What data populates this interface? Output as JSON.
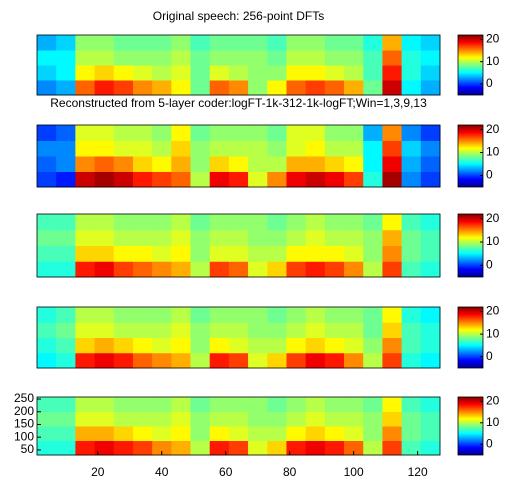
{
  "chart_data": [
    {
      "type": "heatmap",
      "title": "Original speech: 256-point DFTs",
      "colormap": "jet",
      "zlim": [
        -5,
        22
      ],
      "cticks": [
        0,
        10,
        20
      ],
      "xlim": [
        1,
        127
      ],
      "ylim": [
        30,
        258
      ],
      "x": [
        4,
        10,
        16,
        22,
        28,
        34,
        40,
        46,
        52,
        58,
        64,
        70,
        76,
        82,
        88,
        94,
        100,
        106,
        112,
        118,
        124
      ],
      "y": [
        58.5,
        115.5,
        172.5,
        229.5
      ],
      "z": [
        [
          2,
          3,
          16,
          18,
          17,
          15,
          14,
          12,
          8,
          16,
          15,
          9,
          12,
          16,
          17,
          16,
          14,
          8,
          20,
          5,
          3
        ],
        [
          4,
          5,
          12,
          13,
          12,
          11,
          10,
          11,
          8,
          11,
          10,
          9,
          9,
          12,
          12,
          11,
          10,
          7,
          18,
          6,
          4
        ],
        [
          5,
          5,
          10,
          10,
          9,
          9,
          9,
          10,
          8,
          9,
          9,
          9,
          8,
          10,
          10,
          9,
          9,
          7,
          16,
          6,
          5
        ],
        [
          3,
          4,
          9,
          9,
          8,
          8,
          8,
          9,
          7,
          8,
          8,
          8,
          7,
          9,
          9,
          8,
          8,
          6,
          14,
          5,
          4
        ]
      ]
    },
    {
      "type": "heatmap",
      "title": "Reconstructed from 5-layer coder:logFT-1k-312-1k-logFT;Win=1,3,9,13",
      "colormap": "jet",
      "zlim": [
        -5,
        22
      ],
      "cticks": [
        0,
        10,
        20
      ],
      "xlim": [
        1,
        127
      ],
      "ylim": [
        30,
        258
      ],
      "x": [
        4,
        10,
        16,
        22,
        28,
        34,
        40,
        46,
        52,
        58,
        64,
        70,
        76,
        82,
        88,
        94,
        100,
        106,
        112,
        118,
        124
      ],
      "y": [
        58.5,
        115.5,
        172.5,
        229.5
      ],
      "z": [
        [
          0,
          -1,
          20,
          21,
          20,
          18,
          17,
          16,
          10,
          19,
          18,
          11,
          15,
          19,
          20,
          19,
          17,
          6,
          21,
          2,
          0
        ],
        [
          1,
          2,
          15,
          16,
          15,
          13,
          12,
          14,
          9,
          13,
          12,
          10,
          10,
          14,
          14,
          13,
          12,
          5,
          19,
          3,
          1
        ],
        [
          2,
          2,
          12,
          12,
          11,
          11,
          10,
          13,
          9,
          10,
          10,
          10,
          9,
          11,
          12,
          10,
          10,
          5,
          17,
          4,
          2
        ],
        [
          0,
          1,
          11,
          11,
          10,
          10,
          9,
          12,
          8,
          9,
          9,
          9,
          8,
          11,
          11,
          9,
          9,
          3,
          15,
          2,
          0
        ]
      ]
    },
    {
      "type": "heatmap",
      "colormap": "jet",
      "zlim": [
        -5,
        22
      ],
      "cticks": [
        0,
        10,
        20
      ],
      "xlim": [
        1,
        127
      ],
      "ylim": [
        30,
        258
      ],
      "x": [
        4,
        10,
        16,
        22,
        28,
        34,
        40,
        46,
        52,
        58,
        64,
        70,
        76,
        82,
        88,
        94,
        100,
        106,
        112,
        118,
        124
      ],
      "y": [
        58.5,
        115.5,
        172.5,
        229.5
      ],
      "z": [
        [
          6,
          6,
          18,
          19,
          17,
          16,
          15,
          14,
          10,
          17,
          16,
          11,
          13,
          17,
          18,
          17,
          15,
          10,
          17,
          7,
          6
        ],
        [
          7,
          7,
          13,
          13,
          12,
          12,
          11,
          12,
          9,
          11,
          11,
          10,
          10,
          12,
          12,
          12,
          11,
          9,
          15,
          8,
          7
        ],
        [
          8,
          8,
          11,
          11,
          10,
          10,
          10,
          11,
          9,
          10,
          10,
          9,
          9,
          10,
          11,
          10,
          10,
          9,
          14,
          8,
          7
        ],
        [
          7,
          7,
          10,
          10,
          9,
          9,
          9,
          10,
          8,
          9,
          9,
          9,
          8,
          9,
          10,
          9,
          9,
          8,
          12,
          7,
          6
        ]
      ]
    },
    {
      "type": "heatmap",
      "colormap": "jet",
      "zlim": [
        -5,
        22
      ],
      "cticks": [
        0,
        10,
        20
      ],
      "xlim": [
        1,
        127
      ],
      "ylim": [
        30,
        258
      ],
      "x": [
        4,
        10,
        16,
        22,
        28,
        34,
        40,
        46,
        52,
        58,
        64,
        70,
        76,
        82,
        88,
        94,
        100,
        106,
        112,
        118,
        124
      ],
      "y": [
        58.5,
        115.5,
        172.5,
        229.5
      ],
      "z": [
        [
          5,
          6,
          18,
          19,
          18,
          16,
          15,
          14,
          10,
          18,
          17,
          11,
          13,
          17,
          19,
          18,
          15,
          10,
          17,
          6,
          5
        ],
        [
          6,
          7,
          13,
          14,
          13,
          12,
          11,
          12,
          9,
          12,
          11,
          10,
          10,
          12,
          13,
          12,
          11,
          9,
          15,
          7,
          6
        ],
        [
          7,
          8,
          11,
          11,
          10,
          10,
          10,
          11,
          9,
          10,
          10,
          9,
          9,
          10,
          11,
          10,
          10,
          8,
          13,
          7,
          6
        ],
        [
          6,
          7,
          10,
          10,
          9,
          9,
          9,
          10,
          8,
          9,
          9,
          9,
          8,
          9,
          10,
          9,
          9,
          8,
          12,
          6,
          5
        ]
      ]
    },
    {
      "type": "heatmap",
      "colormap": "jet",
      "zlim": [
        -5,
        22
      ],
      "cticks": [
        0,
        10,
        20
      ],
      "xlim": [
        1,
        127
      ],
      "ylim": [
        30,
        258
      ],
      "xticks": [
        20,
        40,
        60,
        80,
        100,
        120
      ],
      "yticks": [
        50,
        100,
        150,
        200,
        250
      ],
      "x": [
        4,
        10,
        16,
        22,
        28,
        34,
        40,
        46,
        52,
        58,
        64,
        70,
        76,
        82,
        88,
        94,
        100,
        106,
        112,
        118,
        124
      ],
      "y": [
        58.5,
        115.5,
        172.5,
        229.5
      ],
      "z": [
        [
          6,
          6,
          18,
          19,
          18,
          17,
          15,
          14,
          10,
          18,
          17,
          11,
          13,
          18,
          19,
          18,
          16,
          10,
          17,
          7,
          6
        ],
        [
          7,
          7,
          14,
          14,
          13,
          12,
          11,
          12,
          9,
          12,
          11,
          10,
          10,
          12,
          13,
          12,
          11,
          9,
          15,
          8,
          7
        ],
        [
          8,
          8,
          11,
          11,
          10,
          10,
          10,
          11,
          9,
          10,
          10,
          9,
          9,
          10,
          11,
          10,
          10,
          9,
          13,
          8,
          7
        ],
        [
          7,
          7,
          10,
          10,
          9,
          9,
          9,
          10,
          8,
          9,
          9,
          9,
          8,
          9,
          10,
          9,
          9,
          8,
          12,
          7,
          6
        ]
      ]
    }
  ]
}
